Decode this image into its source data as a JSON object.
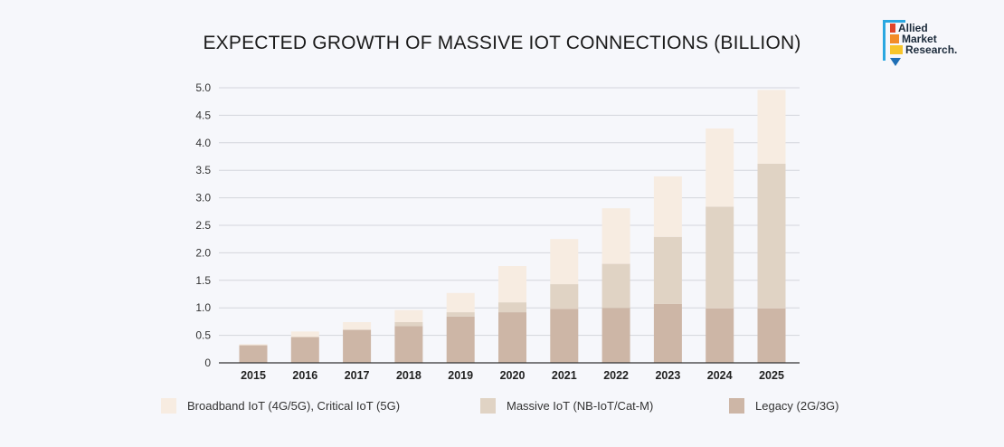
{
  "brand": {
    "logo_lines": [
      "Allied",
      "Market",
      "Research."
    ]
  },
  "chart_data": {
    "type": "bar",
    "stacked": true,
    "title": "EXPECTED GROWTH OF MASSIVE IOT CONNECTIONS (BILLION)",
    "xlabel": "",
    "ylabel": "",
    "ylim": [
      0,
      5.0
    ],
    "yticks": [
      "0",
      "0.5",
      "1.0",
      "1.5",
      "2.0",
      "2.5",
      "3.0",
      "3.5",
      "4.0",
      "4.5",
      "5.0"
    ],
    "grid": true,
    "legend_position": "bottom",
    "categories": [
      "2015",
      "2016",
      "2017",
      "2018",
      "2019",
      "2020",
      "2021",
      "2022",
      "2023",
      "2024",
      "2025"
    ],
    "series": [
      {
        "name": "Legacy (2G/3G)",
        "color": "#cdb6a6",
        "values": [
          0.32,
          0.47,
          0.6,
          0.67,
          0.84,
          0.92,
          0.98,
          1.0,
          1.07,
          0.99,
          0.99
        ]
      },
      {
        "name": "Massive IoT (NB-IoT/Cat-M)",
        "color": "#e0d3c4",
        "values": [
          0.0,
          0.0,
          0.0,
          0.07,
          0.08,
          0.18,
          0.45,
          0.8,
          1.22,
          1.85,
          2.63
        ]
      },
      {
        "name": "Broadband IoT (4G/5G), Critical IoT (5G)",
        "color": "#f7ece1",
        "values": [
          0.02,
          0.1,
          0.14,
          0.22,
          0.35,
          0.66,
          0.82,
          1.01,
          1.1,
          1.42,
          1.34
        ]
      }
    ],
    "legend_order": [
      "Broadband IoT (4G/5G), Critical IoT (5G)",
      "Massive IoT (NB-IoT/Cat-M)",
      "Legacy (2G/3G)"
    ]
  },
  "legend": [
    {
      "label": "Broadband IoT (4G/5G), Critical IoT (5G)",
      "color": "#f7ece1"
    },
    {
      "label": "Massive IoT (NB-IoT/Cat-M)",
      "color": "#e0d3c4"
    },
    {
      "label": "Legacy (2G/3G)",
      "color": "#cdb6a6"
    }
  ]
}
